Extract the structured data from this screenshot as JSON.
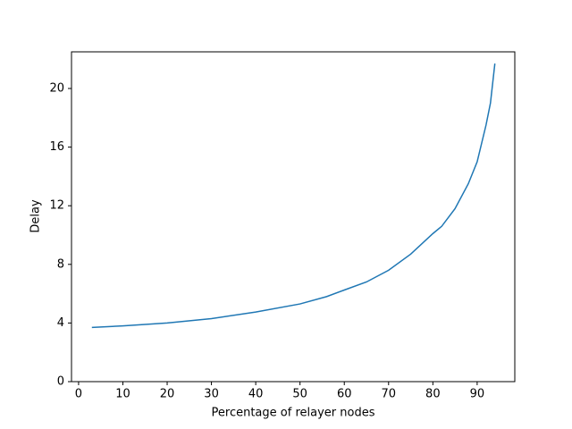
{
  "chart_data": {
    "type": "line",
    "xlabel": "Percentage of relayer nodes",
    "ylabel": "Delay",
    "x": [
      3,
      10,
      20,
      30,
      40,
      50,
      56,
      60,
      65,
      70,
      75,
      80,
      82,
      85,
      88,
      90,
      92,
      93,
      94
    ],
    "series": [
      {
        "color": "#1f77b4",
        "values": [
          3.7,
          3.8,
          4.0,
          4.3,
          4.75,
          5.3,
          5.8,
          6.25,
          6.8,
          7.6,
          8.7,
          10.1,
          10.6,
          11.8,
          13.5,
          15.0,
          17.5,
          19.0,
          21.7
        ]
      }
    ],
    "xlim": [
      -1.6,
      98.5
    ],
    "xticks": [
      0,
      10,
      20,
      30,
      40,
      50,
      60,
      70,
      80,
      90
    ],
    "ylim": [
      0,
      22.5
    ],
    "yticks": [
      0,
      4,
      8,
      12,
      16,
      20
    ]
  }
}
